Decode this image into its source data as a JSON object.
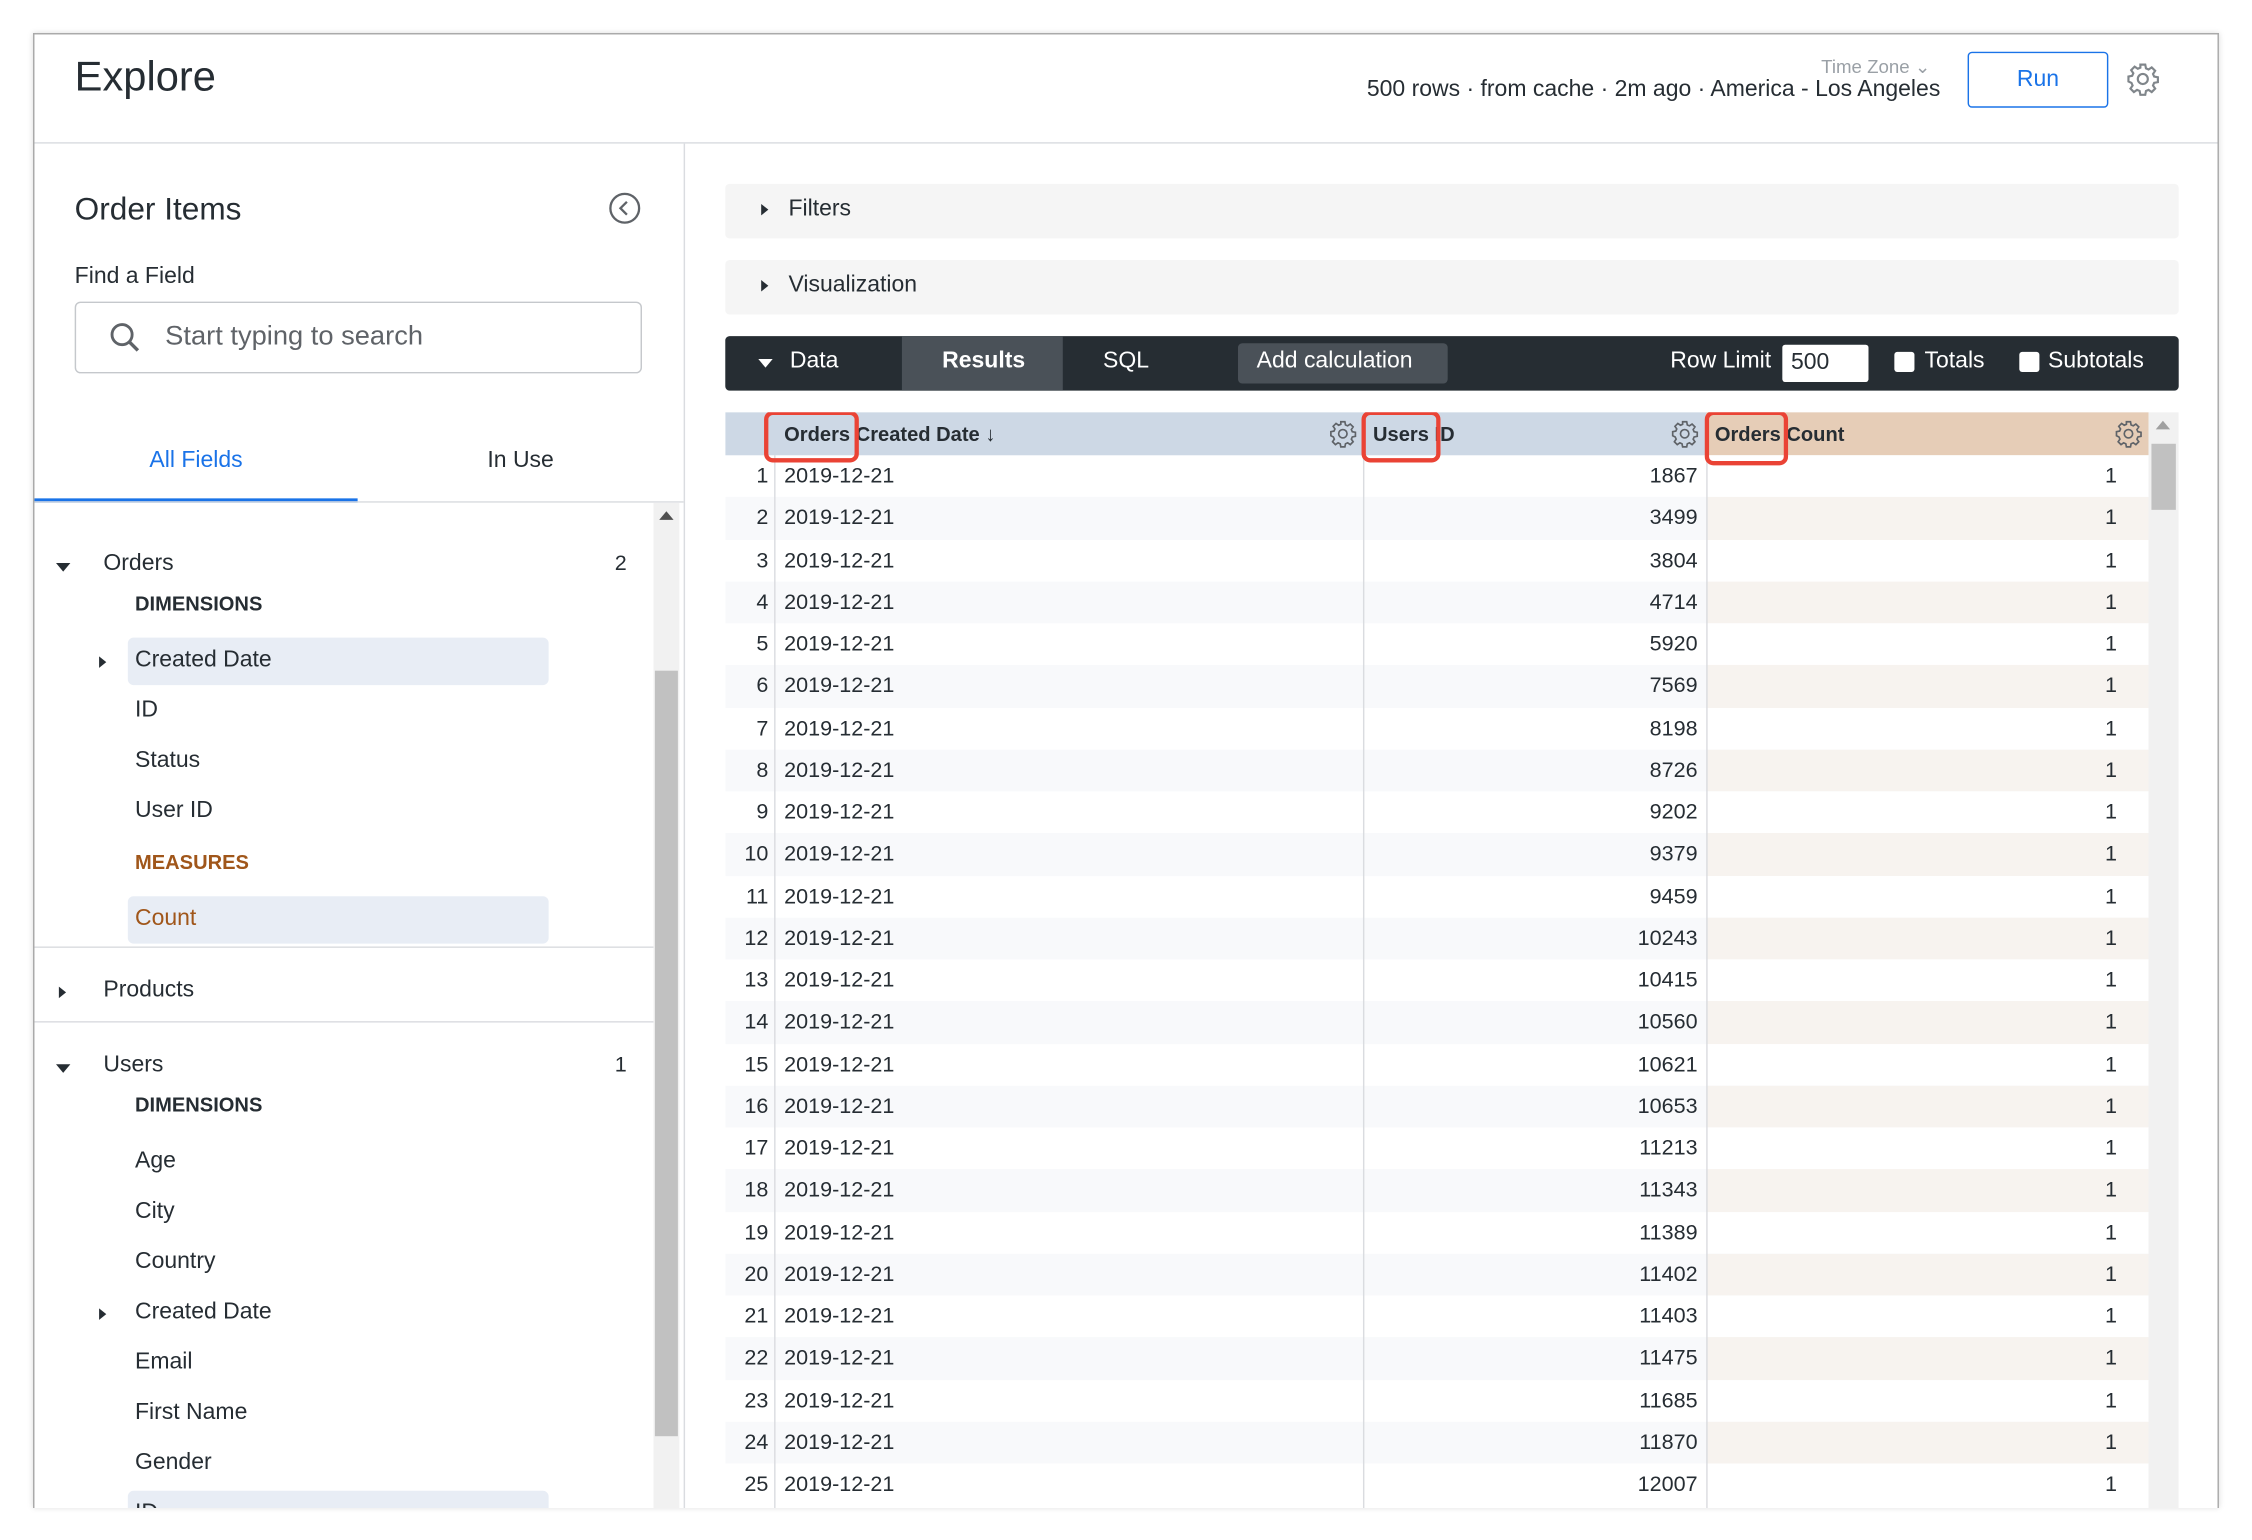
{
  "header": {
    "title": "Explore",
    "time_zone_label": "Time Zone",
    "status": "500 rows · from cache · 2m ago · America - Los Angeles",
    "run_label": "Run"
  },
  "sidebar": {
    "title": "Order Items",
    "find_label": "Find a Field",
    "search_placeholder": "Start typing to search",
    "tabs": [
      {
        "label": "All Fields",
        "active": true
      },
      {
        "label": "In Use",
        "active": false
      }
    ],
    "groups": [
      {
        "name": "Orders",
        "count": "2",
        "expanded": true,
        "sections": [
          {
            "label": "DIMENSIONS",
            "type": "dimension",
            "items": [
              {
                "label": "Created Date",
                "selected": true,
                "expandable": true
              },
              {
                "label": "ID"
              },
              {
                "label": "Status"
              },
              {
                "label": "User ID"
              }
            ]
          },
          {
            "label": "MEASURES",
            "type": "measure",
            "items": [
              {
                "label": "Count",
                "selected": true
              }
            ]
          }
        ]
      },
      {
        "name": "Products",
        "count": "",
        "expanded": false,
        "sections": []
      },
      {
        "name": "Users",
        "count": "1",
        "expanded": true,
        "sections": [
          {
            "label": "DIMENSIONS",
            "type": "dimension",
            "items": [
              {
                "label": "Age"
              },
              {
                "label": "City"
              },
              {
                "label": "Country"
              },
              {
                "label": "Created Date",
                "expandable": true
              },
              {
                "label": "Email"
              },
              {
                "label": "First Name"
              },
              {
                "label": "Gender"
              },
              {
                "label": "ID",
                "selected": true
              }
            ]
          }
        ]
      }
    ]
  },
  "panels": {
    "filters": "Filters",
    "visualization": "Visualization"
  },
  "databar": {
    "data": "Data",
    "results": "Results",
    "sql": "SQL",
    "add_calculation": "Add calculation",
    "row_limit_label": "Row Limit",
    "row_limit": "500",
    "totals": "Totals",
    "subtotals": "Subtotals"
  },
  "table": {
    "columns": [
      {
        "view": "Orders",
        "field": "Created Date",
        "sort": "↓"
      },
      {
        "view": "Users",
        "field": "ID"
      },
      {
        "view": "Orders",
        "field": "Count"
      }
    ],
    "rows": [
      [
        "2019-12-21",
        "1867",
        "1"
      ],
      [
        "2019-12-21",
        "3499",
        "1"
      ],
      [
        "2019-12-21",
        "3804",
        "1"
      ],
      [
        "2019-12-21",
        "4714",
        "1"
      ],
      [
        "2019-12-21",
        "5920",
        "1"
      ],
      [
        "2019-12-21",
        "7569",
        "1"
      ],
      [
        "2019-12-21",
        "8198",
        "1"
      ],
      [
        "2019-12-21",
        "8726",
        "1"
      ],
      [
        "2019-12-21",
        "9202",
        "1"
      ],
      [
        "2019-12-21",
        "9379",
        "1"
      ],
      [
        "2019-12-21",
        "9459",
        "1"
      ],
      [
        "2019-12-21",
        "10243",
        "1"
      ],
      [
        "2019-12-21",
        "10415",
        "1"
      ],
      [
        "2019-12-21",
        "10560",
        "1"
      ],
      [
        "2019-12-21",
        "10621",
        "1"
      ],
      [
        "2019-12-21",
        "10653",
        "1"
      ],
      [
        "2019-12-21",
        "11213",
        "1"
      ],
      [
        "2019-12-21",
        "11343",
        "1"
      ],
      [
        "2019-12-21",
        "11389",
        "1"
      ],
      [
        "2019-12-21",
        "11402",
        "1"
      ],
      [
        "2019-12-21",
        "11403",
        "1"
      ],
      [
        "2019-12-21",
        "11475",
        "1"
      ],
      [
        "2019-12-21",
        "11685",
        "1"
      ],
      [
        "2019-12-21",
        "11870",
        "1"
      ],
      [
        "2019-12-21",
        "12007",
        "1"
      ]
    ]
  },
  "colors": {
    "accent": "#1a73e8",
    "dimension_header": "#cdd8e5",
    "measure_header": "#e6cdb7",
    "measure_row_tint": "#f7f3ef",
    "measure_label": "#a0561a",
    "annotation": "#ea4335",
    "dark_bar": "#262d33"
  }
}
